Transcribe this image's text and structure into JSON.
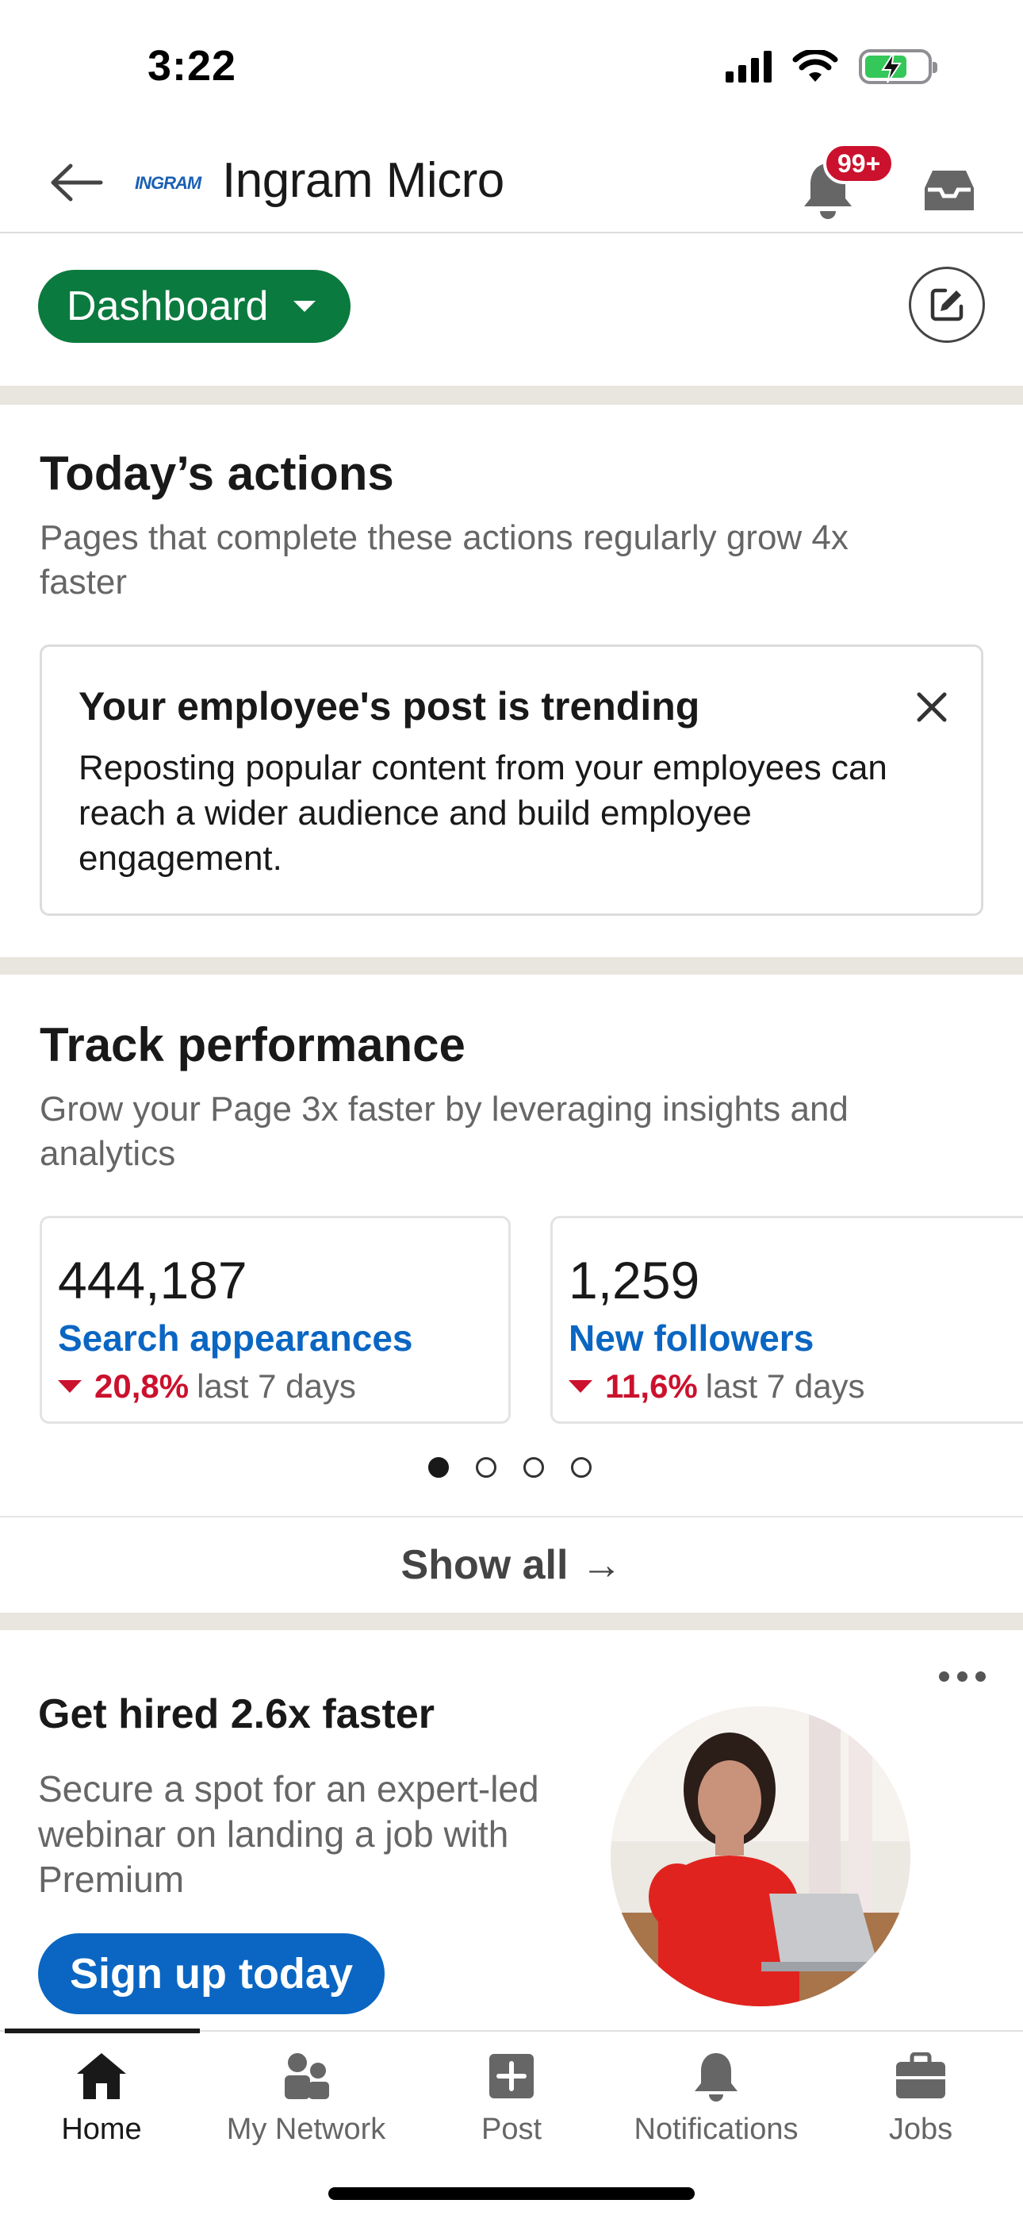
{
  "status_bar": {
    "time": "3:22"
  },
  "header": {
    "logo_text": "INGRAM",
    "company_name": "Ingram Micro",
    "notification_badge": "99+"
  },
  "dashboard": {
    "label": "Dashboard"
  },
  "todays_actions": {
    "title": "Today’s actions",
    "subtitle": "Pages that complete these actions regularly grow 4x faster",
    "card": {
      "title": "Your employee's post is trending",
      "body": "Reposting popular content from your employees can reach a wider audience and build employee engagement."
    }
  },
  "track_performance": {
    "title": "Track performance",
    "subtitle": "Grow your Page 3x faster by leveraging insights and analytics",
    "metrics": [
      {
        "value": "444,187",
        "label": "Search appearances",
        "change": "20,8%",
        "period": "last 7 days"
      },
      {
        "value": "1,259",
        "label": "New followers",
        "change": "11,6%",
        "period": "last 7 days"
      }
    ],
    "pagination": {
      "count": 4,
      "active_index": 0
    },
    "show_all": "Show all",
    "show_all_arrow": "→"
  },
  "promo": {
    "title": "Get hired 2.6x faster",
    "body": "Secure a spot for an expert-led webinar on landing a job with Premium",
    "button": "Sign up today"
  },
  "bottom_nav": {
    "items": [
      {
        "label": "Home",
        "icon": "home-icon",
        "active": true
      },
      {
        "label": "My Network",
        "icon": "network-icon",
        "active": false
      },
      {
        "label": "Post",
        "icon": "post-icon",
        "active": false
      },
      {
        "label": "Notifications",
        "icon": "notifications-icon",
        "active": false
      },
      {
        "label": "Jobs",
        "icon": "jobs-icon",
        "active": false
      }
    ]
  },
  "colors": {
    "dashboard_green": "#0b7a3f",
    "link_blue": "#0a66c2",
    "alert_red": "#cb112d"
  }
}
